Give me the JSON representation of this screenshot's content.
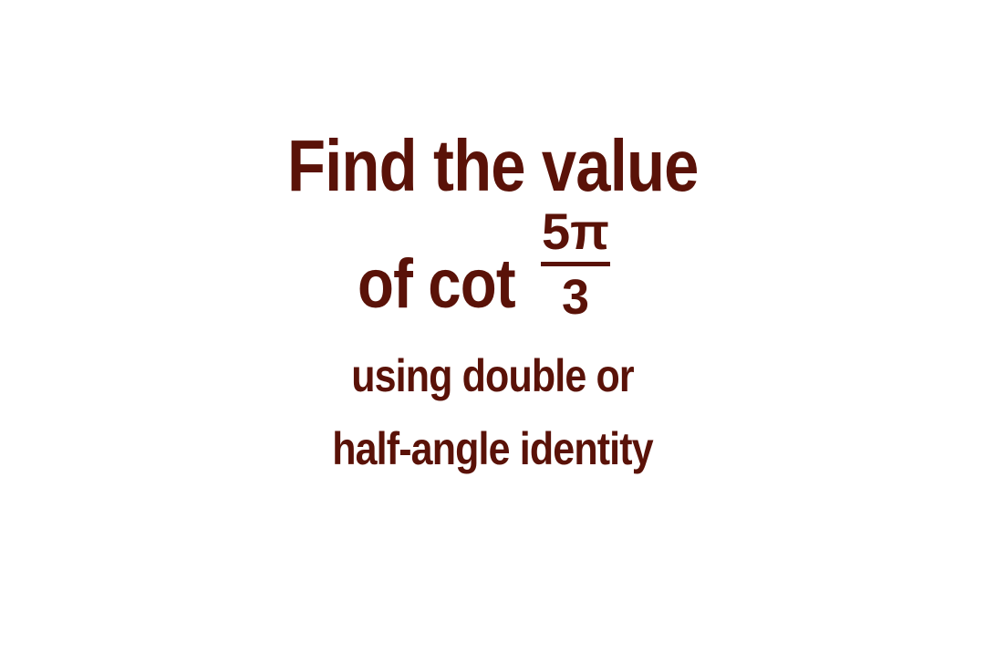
{
  "heading": {
    "line1": "Find the value",
    "line2_prefix": "of cot",
    "fraction": {
      "numerator": "5π",
      "denominator": "3"
    },
    "subtitle_line1": "using double or",
    "subtitle_line2": "half-angle identity"
  },
  "colors": {
    "text": "#5a1208",
    "background": "#ffffff"
  }
}
